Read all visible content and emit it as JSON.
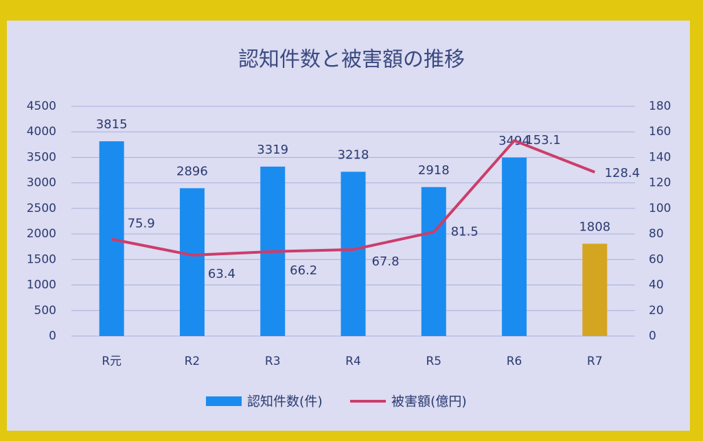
{
  "chart_data": {
    "type": "bar-line",
    "title": "認知件数と被害額の推移",
    "categories": [
      "R元",
      "R2",
      "R3",
      "R4",
      "R5",
      "R6",
      "R7"
    ],
    "series": [
      {
        "name": "認知件数(件)",
        "type": "bar",
        "color": "#1a8cf0",
        "colors": [
          "#1a8cf0",
          "#1a8cf0",
          "#1a8cf0",
          "#1a8cf0",
          "#1a8cf0",
          "#1a8cf0",
          "#d4a520"
        ],
        "values": [
          3815,
          2896,
          3319,
          3218,
          2918,
          3494,
          1808
        ]
      },
      {
        "name": "被害額(億円)",
        "type": "line",
        "axis": "y2",
        "color": "#cc3d6a",
        "values": [
          75.9,
          63.4,
          66.2,
          67.8,
          81.5,
          153.1,
          128.4
        ]
      }
    ],
    "ylim": [
      0,
      4500
    ],
    "yticks": [
      0,
      500,
      1000,
      1500,
      2000,
      2500,
      3000,
      3500,
      4000,
      4500
    ],
    "y2lim": [
      0,
      180
    ],
    "y2ticks": [
      0,
      20,
      40,
      60,
      80,
      100,
      120,
      140,
      160,
      180
    ],
    "grid": true,
    "legend": "bottom"
  }
}
